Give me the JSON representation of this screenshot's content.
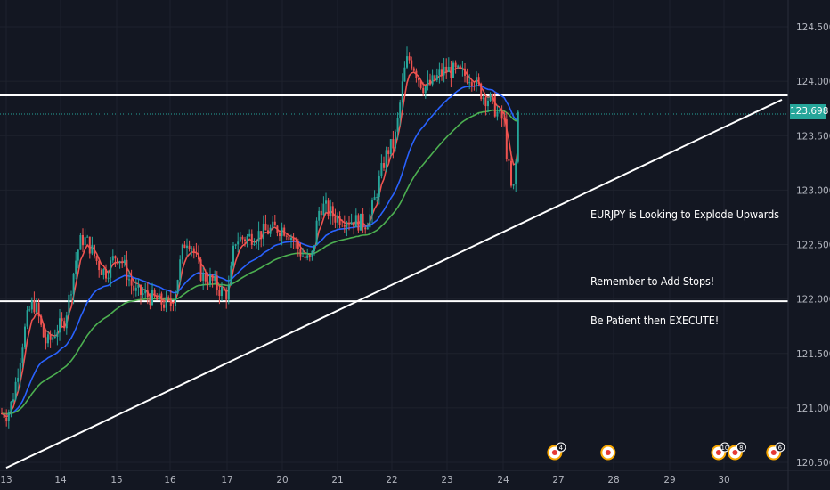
{
  "chart_data": {
    "type": "candlestick",
    "symbol_comment": "EURJPY",
    "x_ticks": [
      "13",
      "14",
      "15",
      "16",
      "17",
      "20",
      "21",
      "22",
      "23",
      "24",
      "27",
      "28",
      "29",
      "30"
    ],
    "y_ticks": [
      "124.500",
      "124.000",
      "123.500",
      "123.000",
      "122.500",
      "122.000",
      "121.500",
      "121.000",
      "120.500"
    ],
    "ylim": [
      120.5,
      124.5
    ],
    "last_price": "123.698",
    "last_price_value": 123.698,
    "resistance_level": 123.87,
    "support_level": 121.98,
    "trendline": {
      "start": {
        "x": "13",
        "y": 120.45
      },
      "end": {
        "x": "30",
        "y": 123.83
      }
    },
    "close_anchors": [
      {
        "x": "13",
        "y": 120.95
      },
      {
        "x": "13.5",
        "y": 121.95
      },
      {
        "x": "13.75",
        "y": 121.6
      },
      {
        "x": "14",
        "y": 121.75
      },
      {
        "x": "14.4",
        "y": 122.55
      },
      {
        "x": "14.8",
        "y": 122.25
      },
      {
        "x": "15",
        "y": 122.4
      },
      {
        "x": "15.4",
        "y": 122.05
      },
      {
        "x": "16",
        "y": 121.95
      },
      {
        "x": "16.3",
        "y": 122.55
      },
      {
        "x": "16.6",
        "y": 122.2
      },
      {
        "x": "17",
        "y": 122.05
      },
      {
        "x": "17.5",
        "y": 122.55
      },
      {
        "x": "20",
        "y": 122.65
      },
      {
        "x": "20.5",
        "y": 122.35
      },
      {
        "x": "20.7",
        "y": 122.85
      },
      {
        "x": "21",
        "y": 122.75
      },
      {
        "x": "21.5",
        "y": 122.7
      },
      {
        "x": "22",
        "y": 123.4
      },
      {
        "x": "22.3",
        "y": 124.2
      },
      {
        "x": "22.6",
        "y": 123.95
      },
      {
        "x": "23",
        "y": 124.1
      },
      {
        "x": "23.4",
        "y": 124.05
      },
      {
        "x": "23.7",
        "y": 123.85
      },
      {
        "x": "24",
        "y": 123.65
      },
      {
        "x": "24.3",
        "y": 123.2
      },
      {
        "x": "24.5",
        "y": 122.95
      },
      {
        "x": "24.7",
        "y": 123.25
      },
      {
        "x": "24.85",
        "y": 123.7
      }
    ],
    "moving_averages": [
      {
        "color": "#ef5350",
        "period": "fast"
      },
      {
        "color": "#2962ff",
        "period": "mid"
      },
      {
        "color": "#4caf50",
        "period": "slow"
      }
    ],
    "annotations": [
      "EURJPY is Looking to Explode Upwards",
      "Remember to Add Stops!",
      "Be Patient then EXECUTE!"
    ],
    "event_markers": [
      {
        "x": "26.8",
        "badge": "4"
      },
      {
        "x": "27.9",
        "badge": ""
      },
      {
        "x": "29.9",
        "badge": "10"
      },
      {
        "x": "30.2",
        "badge": "8"
      },
      {
        "x": "30.9",
        "badge": "6"
      }
    ],
    "colors": {
      "background": "#131722",
      "up": "#26a69a",
      "down": "#ef5350",
      "grid": "#1e222d",
      "axis_text": "#b2b5be",
      "price_line": "#26a69a"
    }
  }
}
